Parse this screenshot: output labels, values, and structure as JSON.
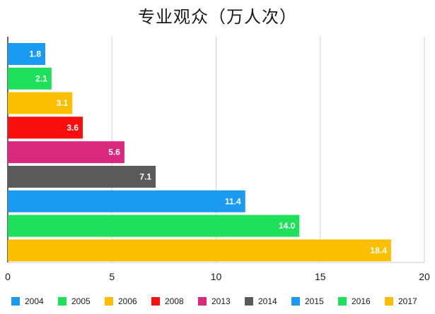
{
  "chart_data": {
    "type": "bar",
    "orientation": "horizontal",
    "title": "专业观众（万人次）",
    "categories": [
      "2004",
      "2005",
      "2006",
      "2008",
      "2013",
      "2014",
      "2015",
      "2016",
      "2017"
    ],
    "values": [
      1.8,
      2.1,
      3.1,
      3.6,
      5.6,
      7.1,
      11.4,
      14.0,
      18.4
    ],
    "value_labels": [
      "1.8",
      "2.1",
      "3.1",
      "3.6",
      "5.6",
      "7.1",
      "11.4",
      "14.0",
      "18.4"
    ],
    "colors": [
      "#1a9af0",
      "#1fe05a",
      "#fbbf00",
      "#f80e0c",
      "#d9287e",
      "#5a5a5a",
      "#1a9af0",
      "#1fe05a",
      "#fbbf00"
    ],
    "xlim": [
      0,
      20
    ],
    "xticks": [
      0,
      5,
      10,
      15,
      20
    ],
    "xtick_labels": [
      "0",
      "5",
      "10",
      "15",
      "20"
    ],
    "grid": true,
    "legend_position": "bottom"
  }
}
